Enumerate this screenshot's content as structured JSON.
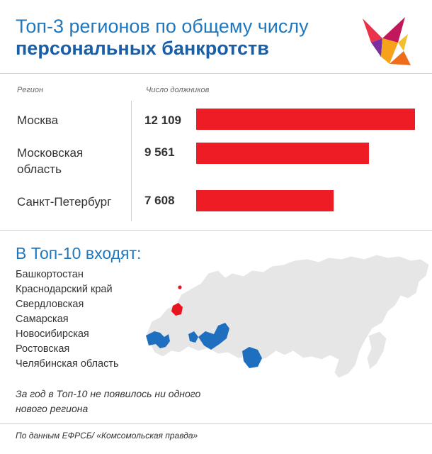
{
  "header": {
    "title_line1": "Топ-3 регионов по общему числу",
    "title_line2": "персональных банкротств"
  },
  "columns": {
    "region": "Регион",
    "debtors": "Число должников"
  },
  "chart_data": {
    "type": "bar",
    "orientation": "horizontal",
    "categories": [
      "Москва",
      "Московская область",
      "Санкт-Петербург"
    ],
    "category_lines": [
      [
        "Москва"
      ],
      [
        "Московская",
        "область"
      ],
      [
        "Санкт-Петербург"
      ]
    ],
    "values": [
      12109,
      9561,
      7608
    ],
    "value_labels": [
      "12 109",
      "9 561",
      "7 608"
    ],
    "bar_color": "#ee1c25",
    "xlim": [
      0,
      12109
    ],
    "grid": false,
    "legend": "none"
  },
  "top10": {
    "title": "В Топ-10 входят:",
    "items": [
      "Башкортостан",
      "Краснодарский край",
      "Свердловская",
      "Самарская",
      "Новосибирская",
      "Ростовская",
      "Челябинская область"
    ],
    "note": "За год в Топ-10 не появилось ни одного нового региона"
  },
  "map": {
    "base_color": "#e6e6e6",
    "highlight_color": "#1e6fbf",
    "top3_color": "#e8141f"
  },
  "footer": {
    "source": "По данным ЕФРСБ/ «Комсомольская правда»"
  }
}
